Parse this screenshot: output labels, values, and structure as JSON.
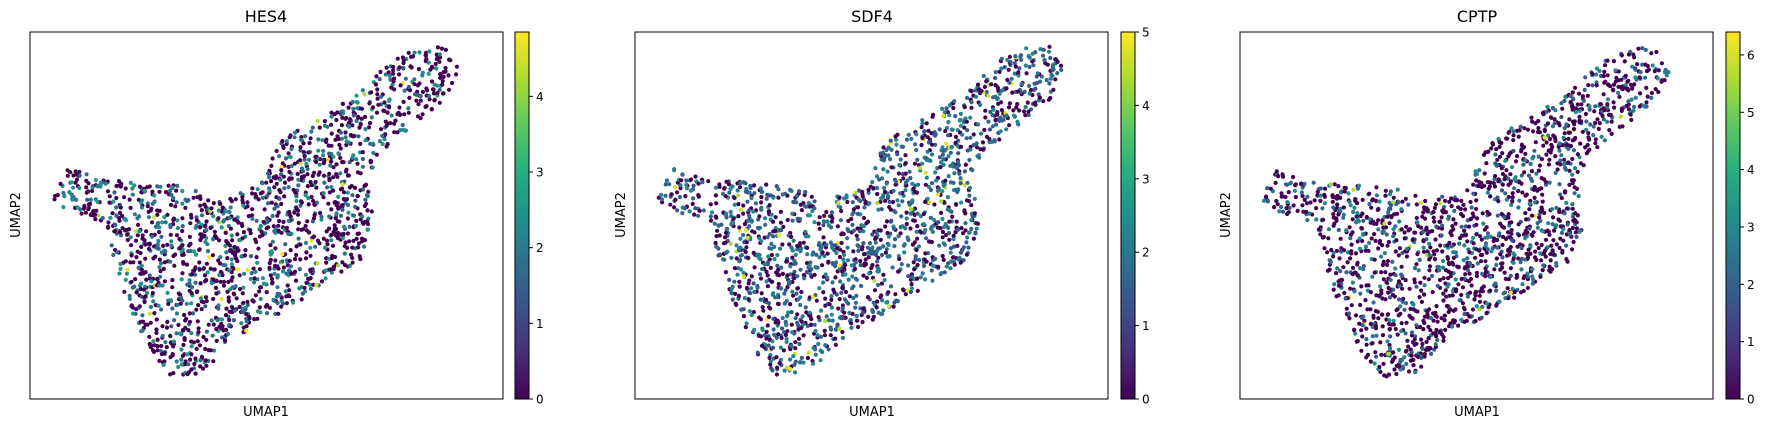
{
  "figure": {
    "panels": [
      {
        "title": "HES4",
        "xlabel": "UMAP1",
        "ylabel": "UMAP2",
        "colorbar_ticks": [
          "0",
          "1",
          "2",
          "3",
          "4"
        ]
      },
      {
        "title": "SDF4",
        "xlabel": "UMAP1",
        "ylabel": "UMAP2",
        "colorbar_ticks": [
          "0",
          "1",
          "2",
          "3",
          "4",
          "5"
        ]
      },
      {
        "title": "CPTP",
        "xlabel": "UMAP1",
        "ylabel": "UMAP2",
        "colorbar_ticks": [
          "0",
          "1",
          "2",
          "3",
          "4",
          "5",
          "6"
        ]
      }
    ]
  },
  "chart_data": [
    {
      "type": "scatter",
      "title": "HES4",
      "xlabel": "UMAP1",
      "ylabel": "UMAP2",
      "colormap": "viridis",
      "color_range": [
        0,
        4.85
      ],
      "colorbar_ticks": [
        0,
        1,
        2,
        3,
        4
      ],
      "xticks": "none",
      "yticks": "none",
      "grid": false
    },
    {
      "type": "scatter",
      "title": "SDF4",
      "xlabel": "UMAP1",
      "ylabel": "UMAP2",
      "colormap": "viridis",
      "color_range": [
        0,
        5
      ],
      "colorbar_ticks": [
        0,
        1,
        2,
        3,
        4,
        5
      ],
      "xticks": "none",
      "yticks": "none",
      "grid": false
    },
    {
      "type": "scatter",
      "title": "CPTP",
      "xlabel": "UMAP1",
      "ylabel": "UMAP2",
      "colormap": "viridis",
      "color_range": [
        0,
        6.4
      ],
      "colorbar_ticks": [
        0,
        1,
        2,
        3,
        4,
        5,
        6
      ],
      "xticks": "none",
      "yticks": "none",
      "grid": false
    }
  ]
}
